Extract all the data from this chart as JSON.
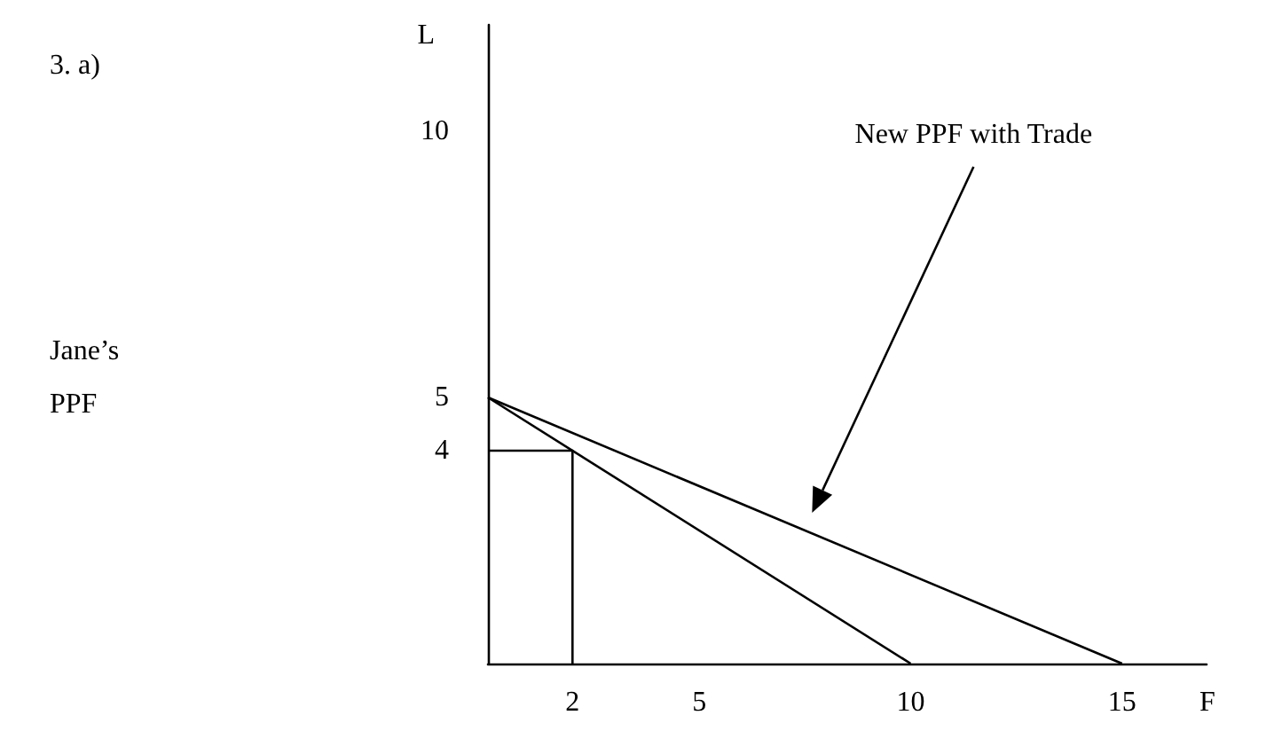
{
  "chart_data": {
    "type": "line",
    "xlabel": "F",
    "ylabel": "L",
    "xlim": [
      0,
      17
    ],
    "ylim": [
      0,
      12
    ],
    "xticks": [
      2,
      5,
      10,
      15
    ],
    "yticks": [
      4,
      5,
      10
    ],
    "grid": false,
    "legend": false,
    "marker": "none",
    "line_style": "solid",
    "series": [
      {
        "color": "#000000",
        "x": [
          0,
          10
        ],
        "values": [
          5,
          0
        ]
      },
      {
        "name": "New PPF with Trade",
        "color": "#000000",
        "x": [
          0,
          15
        ],
        "values": [
          5,
          0
        ]
      },
      {
        "color": "#000000",
        "x": [
          0,
          2,
          2
        ],
        "values": [
          4,
          4,
          0
        ]
      }
    ],
    "annotations": [
      "3. a)",
      "Jane’s PPF"
    ]
  }
}
